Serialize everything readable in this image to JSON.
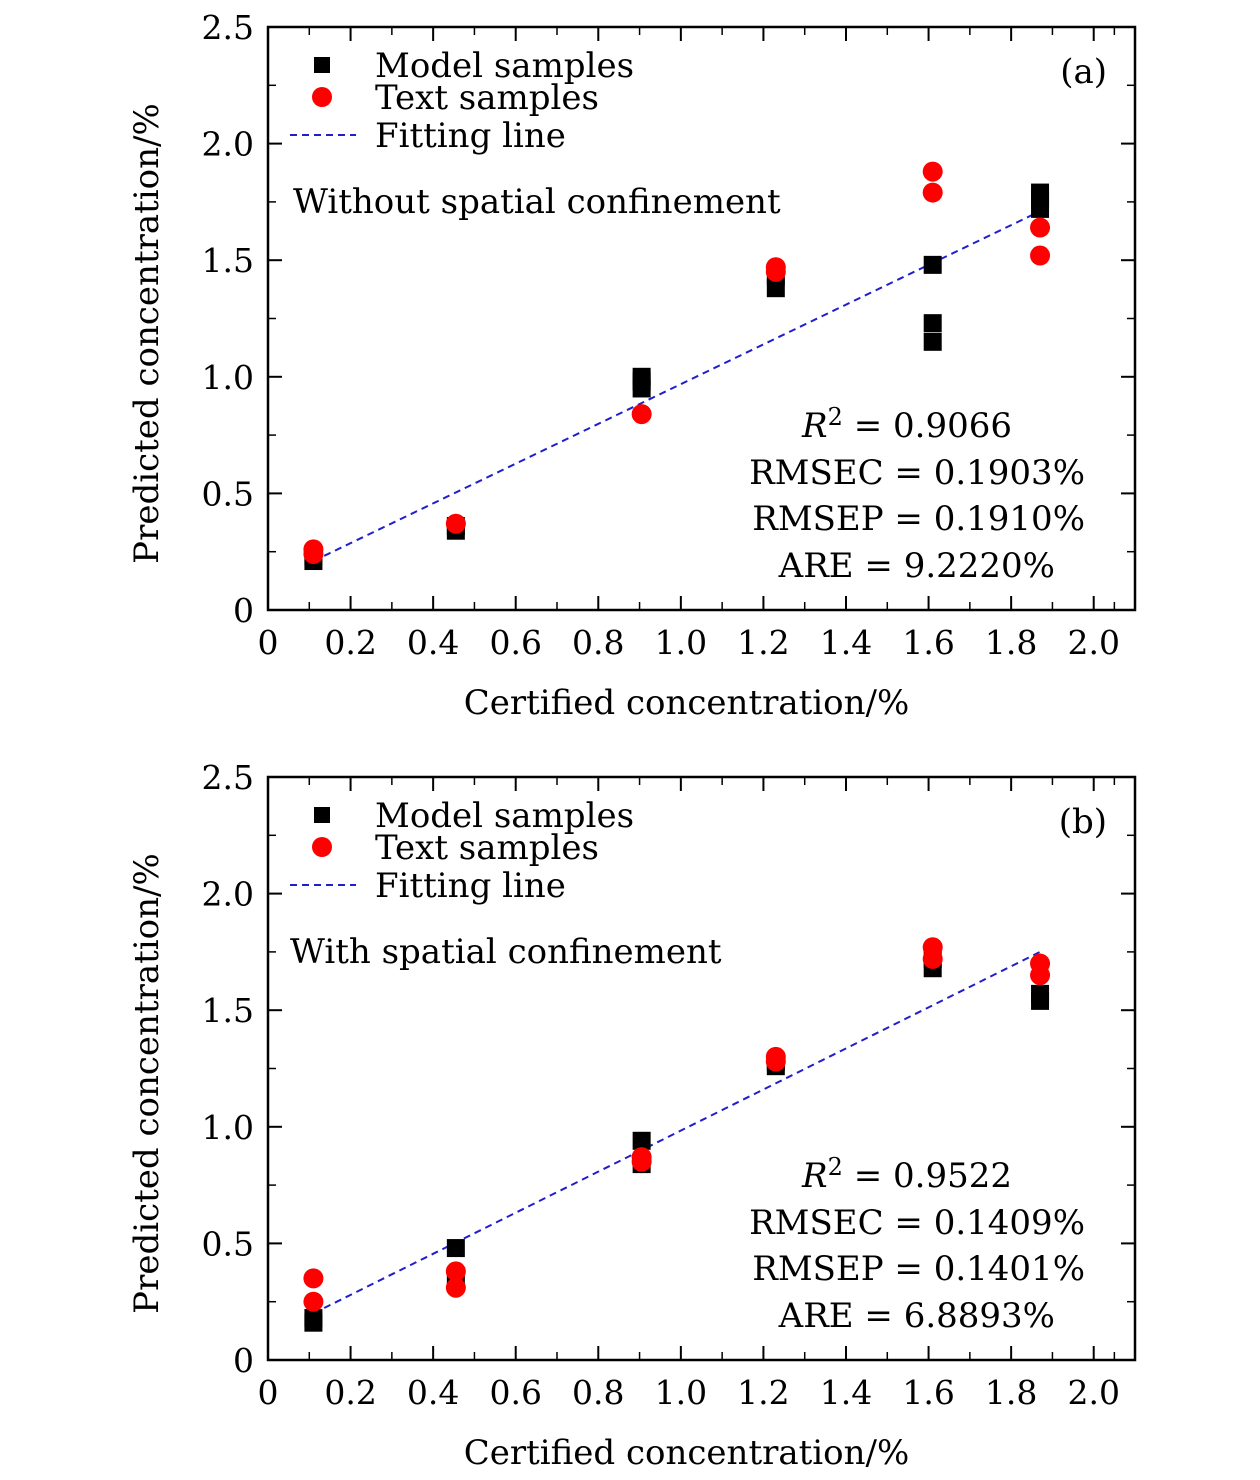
{
  "chart_data": [
    {
      "type": "scatter",
      "panel_label": "(a)",
      "annotation": "Without spatial confinement",
      "xlabel": "Certified concentration/%",
      "ylabel": "Predicted concentration/%",
      "xlim": [
        0,
        2.1
      ],
      "ylim": [
        0,
        2.5
      ],
      "xticks": [
        0,
        0.2,
        0.4,
        0.6,
        0.8,
        1.0,
        1.2,
        1.4,
        1.6,
        1.8,
        2.0
      ],
      "xtick_labels": [
        "0",
        "0.2",
        "0.4",
        "0.6",
        "0.8",
        "1.0",
        "1.2",
        "1.4",
        "1.6",
        "1.8",
        "2.0"
      ],
      "yticks": [
        0,
        0.5,
        1.0,
        1.5,
        2.0,
        2.5
      ],
      "ytick_labels": [
        "0",
        "0.5",
        "1.0",
        "1.5",
        "2.0",
        "2.5"
      ],
      "legend": {
        "placement": "top-left",
        "entries": [
          "Model samples",
          "Text samples",
          "Fitting line"
        ]
      },
      "stats": {
        "r2_symbol": "R",
        "r2_sup": "2",
        "r2_value": "= 0.9066",
        "rmsec": "RMSEC = 0.1903%",
        "rmsep": "RMSEP = 0.1910%",
        "are": "ARE = 9.2220%"
      },
      "series": [
        {
          "name": "Model samples",
          "marker": "square",
          "color": "#000000",
          "points": [
            [
              0.11,
              0.21
            ],
            [
              0.11,
              0.23
            ],
            [
              0.455,
              0.34
            ],
            [
              0.455,
              0.36
            ],
            [
              0.905,
              0.95
            ],
            [
              0.905,
              0.98
            ],
            [
              0.905,
              1.0
            ],
            [
              1.23,
              1.38
            ],
            [
              1.23,
              1.43
            ],
            [
              1.61,
              1.15
            ],
            [
              1.61,
              1.23
            ],
            [
              1.61,
              1.48
            ],
            [
              1.87,
              1.72
            ],
            [
              1.87,
              1.76
            ],
            [
              1.87,
              1.79
            ]
          ]
        },
        {
          "name": "Text samples",
          "marker": "circle",
          "color": "#ff0000",
          "points": [
            [
              0.11,
              0.24
            ],
            [
              0.11,
              0.26
            ],
            [
              0.455,
              0.37
            ],
            [
              0.905,
              0.84
            ],
            [
              1.23,
              1.45
            ],
            [
              1.23,
              1.47
            ],
            [
              1.61,
              1.79
            ],
            [
              1.61,
              1.88
            ],
            [
              1.87,
              1.52
            ],
            [
              1.87,
              1.64
            ]
          ]
        },
        {
          "name": "Fitting line",
          "type": "line",
          "color": "#1f1fcc",
          "x": [
            0.11,
            1.87
          ],
          "y": [
            0.21,
            1.71
          ]
        }
      ]
    },
    {
      "type": "scatter",
      "panel_label": "(b)",
      "annotation": "With spatial confinement",
      "xlabel": "Certified concentration/%",
      "ylabel": "Predicted concentration/%",
      "xlim": [
        0,
        2.1
      ],
      "ylim": [
        0,
        2.5
      ],
      "xticks": [
        0,
        0.2,
        0.4,
        0.6,
        0.8,
        1.0,
        1.2,
        1.4,
        1.6,
        1.8,
        2.0
      ],
      "xtick_labels": [
        "0",
        "0.2",
        "0.4",
        "0.6",
        "0.8",
        "1.0",
        "1.2",
        "1.4",
        "1.6",
        "1.8",
        "2.0"
      ],
      "yticks": [
        0,
        0.5,
        1.0,
        1.5,
        2.0,
        2.5
      ],
      "ytick_labels": [
        "0",
        "0.5",
        "1.0",
        "1.5",
        "2.0",
        "2.5"
      ],
      "legend": {
        "placement": "top-left",
        "entries": [
          "Model samples",
          "Text samples",
          "Fitting line"
        ]
      },
      "stats": {
        "r2_symbol": "R",
        "r2_sup": "2",
        "r2_value": "= 0.9522",
        "rmsec": "RMSEC = 0.1409%",
        "rmsep": "RMSEP = 0.1401%",
        "are": "ARE = 6.8893%"
      },
      "series": [
        {
          "name": "Model samples",
          "marker": "square",
          "color": "#000000",
          "points": [
            [
              0.11,
              0.16
            ],
            [
              0.11,
              0.18
            ],
            [
              0.455,
              0.36
            ],
            [
              0.455,
              0.48
            ],
            [
              0.905,
              0.84
            ],
            [
              0.905,
              0.94
            ],
            [
              1.23,
              1.26
            ],
            [
              1.23,
              1.28
            ],
            [
              1.61,
              1.68
            ],
            [
              1.61,
              1.72
            ],
            [
              1.87,
              1.54
            ],
            [
              1.87,
              1.57
            ]
          ]
        },
        {
          "name": "Text samples",
          "marker": "circle",
          "color": "#ff0000",
          "points": [
            [
              0.11,
              0.25
            ],
            [
              0.11,
              0.35
            ],
            [
              0.455,
              0.31
            ],
            [
              0.455,
              0.38
            ],
            [
              0.905,
              0.85
            ],
            [
              0.905,
              0.87
            ],
            [
              1.23,
              1.28
            ],
            [
              1.23,
              1.3
            ],
            [
              1.61,
              1.72
            ],
            [
              1.61,
              1.77
            ],
            [
              1.87,
              1.65
            ],
            [
              1.87,
              1.7
            ]
          ]
        },
        {
          "name": "Fitting line",
          "type": "line",
          "color": "#1f1fcc",
          "x": [
            0.11,
            1.87
          ],
          "y": [
            0.2,
            1.75
          ]
        }
      ]
    }
  ]
}
